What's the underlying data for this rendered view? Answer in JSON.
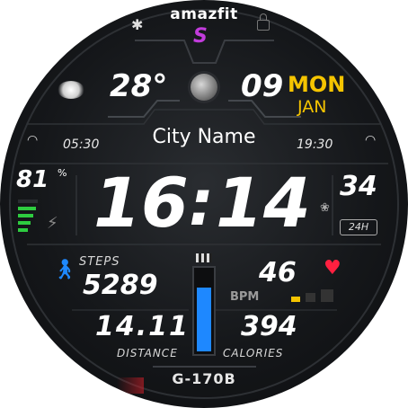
{
  "top": {
    "brand": "amazfit"
  },
  "weather": {
    "temperature": "28°",
    "icon": "moon-cloud-icon"
  },
  "date": {
    "day_number": "09",
    "weekday": "MON",
    "month": "JAN"
  },
  "sun": {
    "sunrise_time": "05:30",
    "sunset_time": "19:30"
  },
  "city": {
    "name": "City Name"
  },
  "battery": {
    "value": "81",
    "unit": "%",
    "level_percent": 81
  },
  "time": {
    "hours": "16",
    "separator": ":",
    "minutes": "14",
    "seconds": "34",
    "format": "24H"
  },
  "steps": {
    "label": "STEPS",
    "value": "5289"
  },
  "heart": {
    "value": "46",
    "unit": "BPM"
  },
  "distance": {
    "value": "14.11",
    "label": "DISTANCE"
  },
  "calories": {
    "value": "394",
    "label": "CALORIES"
  },
  "activity_bar": {
    "level_percent": 80
  },
  "model": {
    "name": "G-170B"
  },
  "colors": {
    "accent_blue": "#1e88ff",
    "accent_yellow": "#f5c400",
    "heart_red": "#ff2040",
    "battery_green": "#2ecc40"
  }
}
